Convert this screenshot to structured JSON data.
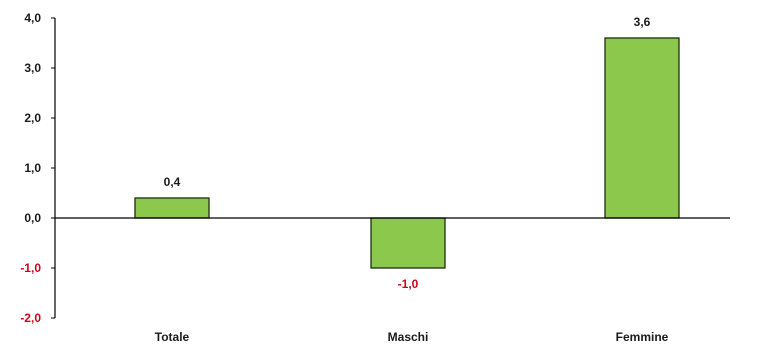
{
  "chart_data": {
    "type": "bar",
    "categories": [
      "Totale",
      "Maschi",
      "Femmine"
    ],
    "values": [
      0.4,
      -1.0,
      3.6
    ],
    "value_labels": [
      "0,4",
      "-1,0",
      "3,6"
    ],
    "yticks": [
      4.0,
      3.0,
      2.0,
      1.0,
      0.0,
      -1.0,
      -2.0
    ],
    "ytick_labels": [
      "4,0",
      "3,0",
      "2,0",
      "1,0",
      "0,0",
      "-1,0",
      "-2,0"
    ],
    "ylim": [
      -2.0,
      4.0
    ],
    "grid": false,
    "title": "",
    "xlabel": "",
    "ylabel": "",
    "colors": {
      "bar_fill": "#8cc84b",
      "bar_stroke": "#1f2d10",
      "axis": "#000000",
      "positive_label": "#1a1a1a",
      "negative_label": "#d0021b"
    }
  }
}
